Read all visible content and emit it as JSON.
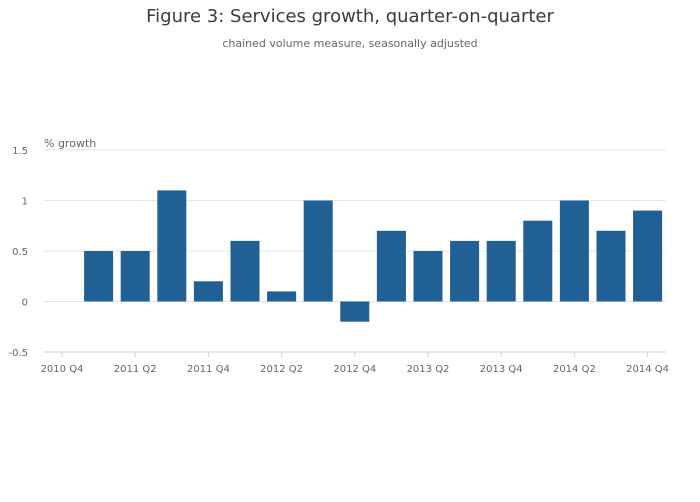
{
  "chart_data": {
    "type": "bar",
    "title": "Figure 3: Services growth, quarter-on-quarter",
    "subtitle": "chained volume measure, seasonally adjusted",
    "ylabel": "% growth",
    "xlabel": "",
    "ylim": [
      -0.5,
      1.5
    ],
    "yticks": [
      -0.5,
      0,
      0.5,
      1,
      1.5
    ],
    "ytick_labels": [
      "-0.5",
      "0",
      "0.5",
      "1",
      "1.5"
    ],
    "categories": [
      "2010 Q4",
      "2011 Q1",
      "2011 Q2",
      "2011 Q3",
      "2011 Q4",
      "2012 Q1",
      "2012 Q2",
      "2012 Q3",
      "2012 Q4",
      "2013 Q1",
      "2013 Q2",
      "2013 Q3",
      "2013 Q4",
      "2014 Q1",
      "2014 Q2",
      "2014 Q3",
      "2014 Q4"
    ],
    "values": [
      null,
      0.5,
      0.5,
      1.1,
      0.2,
      0.6,
      0.1,
      1.0,
      -0.2,
      0.7,
      0.5,
      0.6,
      0.6,
      0.8,
      1.0,
      0.7,
      0.9
    ],
    "xtick_labels": [
      "2010 Q4",
      "2011 Q2",
      "2011 Q4",
      "2012 Q2",
      "2012 Q4",
      "2013 Q2",
      "2013 Q4",
      "2014 Q2",
      "2014 Q4"
    ],
    "grid": true,
    "bar_color": "#206095"
  }
}
